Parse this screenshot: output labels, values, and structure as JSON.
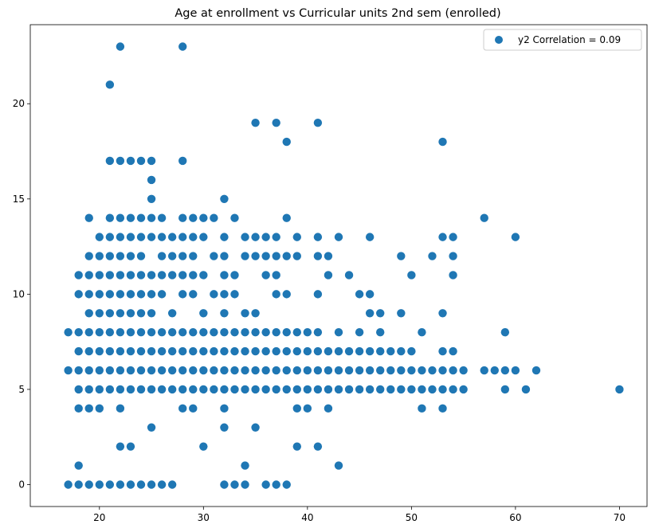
{
  "chart_data": {
    "type": "scatter",
    "title": "Age at enrollment vs Curricular units 2nd sem (enrolled)",
    "xlabel": "",
    "ylabel": "",
    "xlim": [
      13.35,
      72.65
    ],
    "ylim": [
      -1.15,
      24.15
    ],
    "xticks": [
      20,
      30,
      40,
      50,
      60,
      70
    ],
    "yticks": [
      0,
      5,
      10,
      15,
      20
    ],
    "grid": false,
    "legend_position": "top-right",
    "marker_color": "#1f77b4",
    "series": [
      {
        "name": "y2 Correlation = 0.09",
        "points": [
          [
            17,
            0
          ],
          [
            18,
            0
          ],
          [
            19,
            0
          ],
          [
            20,
            0
          ],
          [
            21,
            0
          ],
          [
            22,
            0
          ],
          [
            23,
            0
          ],
          [
            24,
            0
          ],
          [
            25,
            0
          ],
          [
            26,
            0
          ],
          [
            27,
            0
          ],
          [
            32,
            0
          ],
          [
            33,
            0
          ],
          [
            34,
            0
          ],
          [
            36,
            0
          ],
          [
            37,
            0
          ],
          [
            38,
            0
          ],
          [
            18,
            1
          ],
          [
            34,
            1
          ],
          [
            43,
            1
          ],
          [
            22,
            2
          ],
          [
            23,
            2
          ],
          [
            30,
            2
          ],
          [
            39,
            2
          ],
          [
            41,
            2
          ],
          [
            25,
            3
          ],
          [
            32,
            3
          ],
          [
            35,
            3
          ],
          [
            18,
            4
          ],
          [
            19,
            4
          ],
          [
            20,
            4
          ],
          [
            22,
            4
          ],
          [
            28,
            4
          ],
          [
            29,
            4
          ],
          [
            32,
            4
          ],
          [
            39,
            4
          ],
          [
            40,
            4
          ],
          [
            42,
            4
          ],
          [
            51,
            4
          ],
          [
            53,
            4
          ],
          [
            18,
            5
          ],
          [
            19,
            5
          ],
          [
            20,
            5
          ],
          [
            21,
            5
          ],
          [
            22,
            5
          ],
          [
            23,
            5
          ],
          [
            24,
            5
          ],
          [
            25,
            5
          ],
          [
            26,
            5
          ],
          [
            27,
            5
          ],
          [
            28,
            5
          ],
          [
            29,
            5
          ],
          [
            30,
            5
          ],
          [
            31,
            5
          ],
          [
            32,
            5
          ],
          [
            33,
            5
          ],
          [
            34,
            5
          ],
          [
            35,
            5
          ],
          [
            36,
            5
          ],
          [
            37,
            5
          ],
          [
            38,
            5
          ],
          [
            39,
            5
          ],
          [
            40,
            5
          ],
          [
            41,
            5
          ],
          [
            42,
            5
          ],
          [
            43,
            5
          ],
          [
            44,
            5
          ],
          [
            45,
            5
          ],
          [
            46,
            5
          ],
          [
            47,
            5
          ],
          [
            48,
            5
          ],
          [
            49,
            5
          ],
          [
            50,
            5
          ],
          [
            51,
            5
          ],
          [
            52,
            5
          ],
          [
            53,
            5
          ],
          [
            54,
            5
          ],
          [
            55,
            5
          ],
          [
            59,
            5
          ],
          [
            61,
            5
          ],
          [
            70,
            5
          ],
          [
            17,
            6
          ],
          [
            18,
            6
          ],
          [
            19,
            6
          ],
          [
            20,
            6
          ],
          [
            21,
            6
          ],
          [
            22,
            6
          ],
          [
            23,
            6
          ],
          [
            24,
            6
          ],
          [
            25,
            6
          ],
          [
            26,
            6
          ],
          [
            27,
            6
          ],
          [
            28,
            6
          ],
          [
            29,
            6
          ],
          [
            30,
            6
          ],
          [
            31,
            6
          ],
          [
            32,
            6
          ],
          [
            33,
            6
          ],
          [
            34,
            6
          ],
          [
            35,
            6
          ],
          [
            36,
            6
          ],
          [
            37,
            6
          ],
          [
            38,
            6
          ],
          [
            39,
            6
          ],
          [
            40,
            6
          ],
          [
            41,
            6
          ],
          [
            42,
            6
          ],
          [
            43,
            6
          ],
          [
            44,
            6
          ],
          [
            45,
            6
          ],
          [
            46,
            6
          ],
          [
            47,
            6
          ],
          [
            48,
            6
          ],
          [
            49,
            6
          ],
          [
            50,
            6
          ],
          [
            51,
            6
          ],
          [
            52,
            6
          ],
          [
            53,
            6
          ],
          [
            54,
            6
          ],
          [
            55,
            6
          ],
          [
            57,
            6
          ],
          [
            58,
            6
          ],
          [
            59,
            6
          ],
          [
            60,
            6
          ],
          [
            62,
            6
          ],
          [
            18,
            7
          ],
          [
            19,
            7
          ],
          [
            20,
            7
          ],
          [
            21,
            7
          ],
          [
            22,
            7
          ],
          [
            23,
            7
          ],
          [
            24,
            7
          ],
          [
            25,
            7
          ],
          [
            26,
            7
          ],
          [
            27,
            7
          ],
          [
            28,
            7
          ],
          [
            29,
            7
          ],
          [
            30,
            7
          ],
          [
            31,
            7
          ],
          [
            32,
            7
          ],
          [
            33,
            7
          ],
          [
            34,
            7
          ],
          [
            35,
            7
          ],
          [
            36,
            7
          ],
          [
            37,
            7
          ],
          [
            38,
            7
          ],
          [
            39,
            7
          ],
          [
            40,
            7
          ],
          [
            41,
            7
          ],
          [
            42,
            7
          ],
          [
            43,
            7
          ],
          [
            44,
            7
          ],
          [
            45,
            7
          ],
          [
            46,
            7
          ],
          [
            47,
            7
          ],
          [
            48,
            7
          ],
          [
            49,
            7
          ],
          [
            50,
            7
          ],
          [
            53,
            7
          ],
          [
            54,
            7
          ],
          [
            17,
            8
          ],
          [
            18,
            8
          ],
          [
            19,
            8
          ],
          [
            20,
            8
          ],
          [
            21,
            8
          ],
          [
            22,
            8
          ],
          [
            23,
            8
          ],
          [
            24,
            8
          ],
          [
            25,
            8
          ],
          [
            26,
            8
          ],
          [
            27,
            8
          ],
          [
            28,
            8
          ],
          [
            29,
            8
          ],
          [
            30,
            8
          ],
          [
            31,
            8
          ],
          [
            32,
            8
          ],
          [
            33,
            8
          ],
          [
            34,
            8
          ],
          [
            35,
            8
          ],
          [
            36,
            8
          ],
          [
            37,
            8
          ],
          [
            38,
            8
          ],
          [
            39,
            8
          ],
          [
            40,
            8
          ],
          [
            41,
            8
          ],
          [
            43,
            8
          ],
          [
            45,
            8
          ],
          [
            47,
            8
          ],
          [
            51,
            8
          ],
          [
            59,
            8
          ],
          [
            19,
            9
          ],
          [
            20,
            9
          ],
          [
            21,
            9
          ],
          [
            22,
            9
          ],
          [
            23,
            9
          ],
          [
            24,
            9
          ],
          [
            25,
            9
          ],
          [
            27,
            9
          ],
          [
            30,
            9
          ],
          [
            32,
            9
          ],
          [
            34,
            9
          ],
          [
            35,
            9
          ],
          [
            46,
            9
          ],
          [
            47,
            9
          ],
          [
            49,
            9
          ],
          [
            53,
            9
          ],
          [
            18,
            10
          ],
          [
            19,
            10
          ],
          [
            20,
            10
          ],
          [
            21,
            10
          ],
          [
            22,
            10
          ],
          [
            23,
            10
          ],
          [
            24,
            10
          ],
          [
            25,
            10
          ],
          [
            26,
            10
          ],
          [
            28,
            10
          ],
          [
            29,
            10
          ],
          [
            31,
            10
          ],
          [
            32,
            10
          ],
          [
            33,
            10
          ],
          [
            37,
            10
          ],
          [
            38,
            10
          ],
          [
            41,
            10
          ],
          [
            45,
            10
          ],
          [
            46,
            10
          ],
          [
            18,
            11
          ],
          [
            19,
            11
          ],
          [
            20,
            11
          ],
          [
            21,
            11
          ],
          [
            22,
            11
          ],
          [
            23,
            11
          ],
          [
            24,
            11
          ],
          [
            25,
            11
          ],
          [
            26,
            11
          ],
          [
            27,
            11
          ],
          [
            28,
            11
          ],
          [
            29,
            11
          ],
          [
            30,
            11
          ],
          [
            32,
            11
          ],
          [
            33,
            11
          ],
          [
            36,
            11
          ],
          [
            37,
            11
          ],
          [
            42,
            11
          ],
          [
            44,
            11
          ],
          [
            50,
            11
          ],
          [
            54,
            11
          ],
          [
            19,
            12
          ],
          [
            20,
            12
          ],
          [
            21,
            12
          ],
          [
            22,
            12
          ],
          [
            23,
            12
          ],
          [
            24,
            12
          ],
          [
            26,
            12
          ],
          [
            27,
            12
          ],
          [
            28,
            12
          ],
          [
            29,
            12
          ],
          [
            31,
            12
          ],
          [
            32,
            12
          ],
          [
            34,
            12
          ],
          [
            35,
            12
          ],
          [
            36,
            12
          ],
          [
            37,
            12
          ],
          [
            38,
            12
          ],
          [
            39,
            12
          ],
          [
            41,
            12
          ],
          [
            42,
            12
          ],
          [
            49,
            12
          ],
          [
            52,
            12
          ],
          [
            54,
            12
          ],
          [
            20,
            13
          ],
          [
            21,
            13
          ],
          [
            22,
            13
          ],
          [
            23,
            13
          ],
          [
            24,
            13
          ],
          [
            25,
            13
          ],
          [
            26,
            13
          ],
          [
            27,
            13
          ],
          [
            28,
            13
          ],
          [
            29,
            13
          ],
          [
            30,
            13
          ],
          [
            32,
            13
          ],
          [
            34,
            13
          ],
          [
            35,
            13
          ],
          [
            36,
            13
          ],
          [
            37,
            13
          ],
          [
            39,
            13
          ],
          [
            41,
            13
          ],
          [
            43,
            13
          ],
          [
            46,
            13
          ],
          [
            53,
            13
          ],
          [
            54,
            13
          ],
          [
            60,
            13
          ],
          [
            19,
            14
          ],
          [
            21,
            14
          ],
          [
            22,
            14
          ],
          [
            23,
            14
          ],
          [
            24,
            14
          ],
          [
            25,
            14
          ],
          [
            26,
            14
          ],
          [
            28,
            14
          ],
          [
            29,
            14
          ],
          [
            30,
            14
          ],
          [
            31,
            14
          ],
          [
            33,
            14
          ],
          [
            38,
            14
          ],
          [
            57,
            14
          ],
          [
            25,
            15
          ],
          [
            32,
            15
          ],
          [
            25,
            16
          ],
          [
            21,
            17
          ],
          [
            22,
            17
          ],
          [
            23,
            17
          ],
          [
            24,
            17
          ],
          [
            25,
            17
          ],
          [
            28,
            17
          ],
          [
            38,
            18
          ],
          [
            53,
            18
          ],
          [
            35,
            19
          ],
          [
            37,
            19
          ],
          [
            41,
            19
          ],
          [
            21,
            21
          ],
          [
            22,
            23
          ],
          [
            28,
            23
          ]
        ]
      }
    ]
  }
}
